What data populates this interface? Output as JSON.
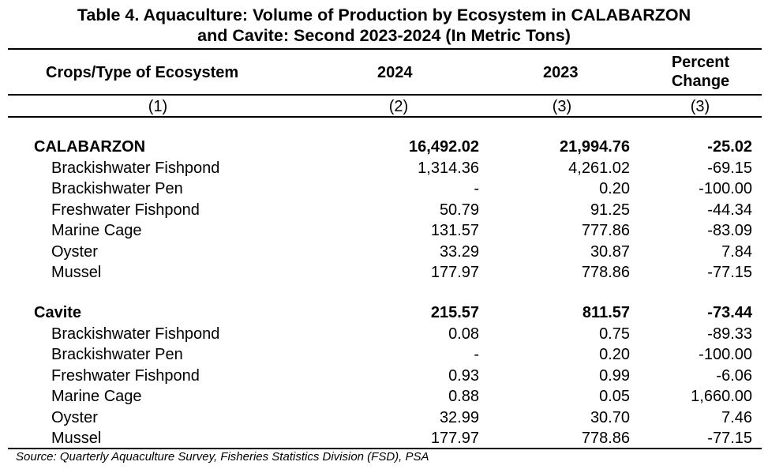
{
  "title": {
    "line1": "Table 4. Aquaculture: Volume of Production by Ecosystem in CALABARZON",
    "line2": "and Cavite: Second 2023-2024 (In Metric Tons)"
  },
  "headers": {
    "col1": "Crops/Type of Ecosystem",
    "col2": "2024",
    "col3": "2023",
    "col4_line1": "Percent",
    "col4_line2": "Change"
  },
  "col_numbers": [
    "(1)",
    "(2)",
    "(3)",
    "(3)"
  ],
  "regions": [
    {
      "name": "CALABARZON",
      "v2024": "16,492.02",
      "v2023": "21,994.76",
      "pct": "-25.02",
      "rows": [
        {
          "label": "Brackishwater Fishpond",
          "v2024": "1,314.36",
          "v2023": "4,261.02",
          "pct": "-69.15"
        },
        {
          "label": "Brackishwater Pen",
          "v2024": "-",
          "v2023": "0.20",
          "pct": "-100.00"
        },
        {
          "label": "Freshwater Fishpond",
          "v2024": "50.79",
          "v2023": "91.25",
          "pct": "-44.34"
        },
        {
          "label": "Marine Cage",
          "v2024": "131.57",
          "v2023": "777.86",
          "pct": "-83.09"
        },
        {
          "label": "Oyster",
          "v2024": "33.29",
          "v2023": "30.87",
          "pct": "7.84"
        },
        {
          "label": "Mussel",
          "v2024": "177.97",
          "v2023": "778.86",
          "pct": "-77.15"
        }
      ]
    },
    {
      "name": "Cavite",
      "v2024": "215.57",
      "v2023": "811.57",
      "pct": "-73.44",
      "rows": [
        {
          "label": "Brackishwater Fishpond",
          "v2024": "0.08",
          "v2023": "0.75",
          "pct": "-89.33"
        },
        {
          "label": "Brackishwater Pen",
          "v2024": "-",
          "v2023": "0.20",
          "pct": "-100.00"
        },
        {
          "label": "Freshwater Fishpond",
          "v2024": "0.93",
          "v2023": "0.99",
          "pct": "-6.06"
        },
        {
          "label": "Marine Cage",
          "v2024": "0.88",
          "v2023": "0.05",
          "pct": "1,660.00"
        },
        {
          "label": "Oyster",
          "v2024": "32.99",
          "v2023": "30.70",
          "pct": "7.46"
        },
        {
          "label": "Mussel",
          "v2024": "177.97",
          "v2023": "778.86",
          "pct": "-77.15"
        }
      ]
    }
  ],
  "source": "Source: Quarterly Aquaculture Survey, Fisheries Statistics Division (FSD), PSA"
}
